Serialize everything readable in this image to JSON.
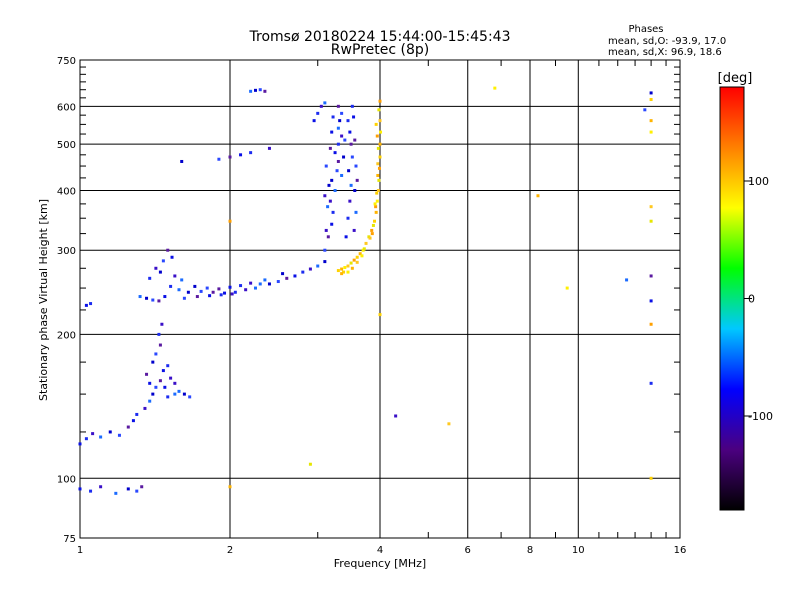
{
  "chart_data": {
    "type": "scatter",
    "title": "Tromsø 20180224 15:44:00-15:45:43",
    "subtitle": "RwPretec (8p)",
    "xlabel": "Frequency [MHz]",
    "ylabel": "Stationary phase Virtual Height [km]",
    "x_scale": "log",
    "y_scale": "log",
    "xlim": [
      1,
      16
    ],
    "ylim": [
      75,
      750
    ],
    "x_ticks": [
      1,
      2,
      4,
      6,
      8,
      10,
      16
    ],
    "x_gridlines": [
      2,
      4,
      6,
      8,
      10
    ],
    "x_minor_ticks": [
      3,
      5,
      7,
      9,
      11,
      12,
      13,
      14,
      15
    ],
    "y_ticks": [
      75,
      100,
      200,
      300,
      400,
      500,
      600,
      750
    ],
    "y_gridlines": [
      100,
      200,
      300,
      400,
      500,
      600
    ],
    "y_minor_ticks": [
      125,
      150,
      175,
      225,
      250,
      275,
      325,
      350,
      375,
      425,
      450,
      475,
      525,
      550,
      575,
      625,
      650,
      675,
      700,
      725
    ],
    "grid": true,
    "phase_legend": {
      "title": "Phases",
      "line_o": "mean, sd,O: -93.9, 17.0",
      "line_x": "mean, sd,X:  96.9, 18.6"
    },
    "colorbar": {
      "label": "[deg]",
      "range": [
        -180,
        180
      ],
      "ticks": [
        100,
        0,
        -100
      ],
      "stops": [
        "#000000",
        "#4b0080",
        "#0000ff",
        "#00c8ff",
        "#00ff00",
        "#ffff00",
        "#ff8000",
        "#ff0000"
      ]
    },
    "series": [
      {
        "name": "O",
        "points": [
          [
            1.0,
            95
          ],
          [
            1.05,
            94
          ],
          [
            1.1,
            96
          ],
          [
            1.18,
            93
          ],
          [
            1.25,
            95
          ],
          [
            1.3,
            94
          ],
          [
            1.33,
            96
          ],
          [
            1.0,
            118
          ],
          [
            1.03,
            121
          ],
          [
            1.06,
            124
          ],
          [
            1.1,
            122
          ],
          [
            1.15,
            125
          ],
          [
            1.2,
            123
          ],
          [
            1.25,
            128
          ],
          [
            1.28,
            132
          ],
          [
            1.3,
            136
          ],
          [
            1.35,
            140
          ],
          [
            1.38,
            145
          ],
          [
            1.4,
            150
          ],
          [
            1.42,
            155
          ],
          [
            1.45,
            160
          ],
          [
            1.48,
            155
          ],
          [
            1.5,
            148
          ],
          [
            1.52,
            162
          ],
          [
            1.55,
            150
          ],
          [
            1.4,
            175
          ],
          [
            1.42,
            182
          ],
          [
            1.45,
            190
          ],
          [
            1.47,
            168
          ],
          [
            1.5,
            172
          ],
          [
            1.55,
            158
          ],
          [
            1.58,
            152
          ],
          [
            1.62,
            150
          ],
          [
            1.66,
            148
          ],
          [
            1.36,
            165
          ],
          [
            1.38,
            158
          ],
          [
            1.44,
            200
          ],
          [
            1.46,
            210
          ],
          [
            1.32,
            240
          ],
          [
            1.36,
            238
          ],
          [
            1.4,
            236
          ],
          [
            1.44,
            235
          ],
          [
            1.48,
            240
          ],
          [
            1.52,
            252
          ],
          [
            1.55,
            265
          ],
          [
            1.6,
            260
          ],
          [
            1.45,
            270
          ],
          [
            1.47,
            285
          ],
          [
            1.5,
            300
          ],
          [
            1.53,
            290
          ],
          [
            1.38,
            262
          ],
          [
            1.42,
            275
          ],
          [
            1.58,
            248
          ],
          [
            1.65,
            245
          ],
          [
            1.75,
            246
          ],
          [
            1.85,
            245
          ],
          [
            1.95,
            244
          ],
          [
            2.05,
            245
          ],
          [
            2.15,
            248
          ],
          [
            2.25,
            250
          ],
          [
            1.7,
            252
          ],
          [
            1.8,
            250
          ],
          [
            1.9,
            249
          ],
          [
            2.0,
            251
          ],
          [
            2.1,
            253
          ],
          [
            2.2,
            256
          ],
          [
            2.3,
            255
          ],
          [
            2.4,
            255
          ],
          [
            2.5,
            258
          ],
          [
            2.6,
            262
          ],
          [
            2.7,
            265
          ],
          [
            2.8,
            270
          ],
          [
            2.9,
            274
          ],
          [
            3.0,
            278
          ],
          [
            3.1,
            284
          ],
          [
            1.62,
            238
          ],
          [
            1.72,
            240
          ],
          [
            1.82,
            241
          ],
          [
            1.92,
            242
          ],
          [
            2.02,
            243
          ],
          [
            2.35,
            260
          ],
          [
            2.55,
            268
          ],
          [
            3.1,
            300
          ],
          [
            3.15,
            320
          ],
          [
            3.2,
            340
          ],
          [
            3.22,
            360
          ],
          [
            3.18,
            380
          ],
          [
            3.25,
            400
          ],
          [
            3.2,
            420
          ],
          [
            3.28,
            440
          ],
          [
            3.3,
            460
          ],
          [
            3.25,
            480
          ],
          [
            3.3,
            500
          ],
          [
            3.35,
            520
          ],
          [
            3.3,
            540
          ],
          [
            3.32,
            560
          ],
          [
            3.35,
            580
          ],
          [
            3.3,
            600
          ],
          [
            3.42,
            320
          ],
          [
            3.45,
            350
          ],
          [
            3.48,
            380
          ],
          [
            3.5,
            410
          ],
          [
            3.46,
            440
          ],
          [
            3.52,
            470
          ],
          [
            3.5,
            500
          ],
          [
            3.48,
            530
          ],
          [
            3.45,
            560
          ],
          [
            3.55,
            330
          ],
          [
            3.58,
            360
          ],
          [
            3.56,
            400
          ],
          [
            3.58,
            450
          ],
          [
            3.56,
            510
          ],
          [
            3.54,
            570
          ],
          [
            3.52,
            600
          ],
          [
            3.12,
            330
          ],
          [
            3.14,
            370
          ],
          [
            3.16,
            410
          ],
          [
            3.12,
            450
          ],
          [
            3.18,
            490
          ],
          [
            3.2,
            530
          ],
          [
            3.22,
            570
          ],
          [
            3.1,
            390
          ],
          [
            3.35,
            430
          ],
          [
            3.38,
            470
          ],
          [
            3.4,
            510
          ],
          [
            3.6,
            420
          ],
          [
            2.95,
            560
          ],
          [
            3.0,
            580
          ],
          [
            3.05,
            600
          ],
          [
            3.1,
            610
          ],
          [
            1.6,
            460
          ],
          [
            1.9,
            465
          ],
          [
            2.0,
            470
          ],
          [
            2.1,
            475
          ],
          [
            2.2,
            480
          ],
          [
            2.4,
            490
          ],
          [
            2.2,
            645
          ],
          [
            2.25,
            648
          ],
          [
            2.3,
            650
          ],
          [
            2.35,
            645
          ],
          [
            1.03,
            230
          ],
          [
            1.05,
            232
          ],
          [
            4.3,
            135
          ],
          [
            12.5,
            260
          ],
          [
            14.0,
            640
          ],
          [
            13.6,
            590
          ],
          [
            14.0,
            265
          ],
          [
            14.0,
            235
          ],
          [
            14.0,
            158
          ]
        ]
      },
      {
        "name": "X",
        "points": [
          [
            3.3,
            272
          ],
          [
            3.35,
            274
          ],
          [
            3.4,
            276
          ],
          [
            3.45,
            278
          ],
          [
            3.5,
            282
          ],
          [
            3.55,
            286
          ],
          [
            3.6,
            290
          ],
          [
            3.65,
            295
          ],
          [
            3.7,
            300
          ],
          [
            3.75,
            310
          ],
          [
            3.8,
            320
          ],
          [
            3.85,
            330
          ],
          [
            3.9,
            345
          ],
          [
            3.93,
            360
          ],
          [
            3.95,
            380
          ],
          [
            3.97,
            400
          ],
          [
            3.98,
            420
          ],
          [
            3.99,
            445
          ],
          [
            4.0,
            470
          ],
          [
            4.0,
            500
          ],
          [
            4.01,
            530
          ],
          [
            4.0,
            560
          ],
          [
            3.98,
            590
          ],
          [
            4.0,
            615
          ],
          [
            3.38,
            270
          ],
          [
            3.52,
            275
          ],
          [
            3.68,
            292
          ],
          [
            3.82,
            318
          ],
          [
            3.88,
            338
          ],
          [
            3.92,
            370
          ],
          [
            3.94,
            395
          ],
          [
            3.96,
            430
          ],
          [
            3.91,
            375
          ],
          [
            3.96,
            455
          ],
          [
            3.97,
            490
          ],
          [
            3.95,
            520
          ],
          [
            3.93,
            550
          ],
          [
            3.35,
            268
          ],
          [
            3.45,
            270
          ],
          [
            3.6,
            283
          ],
          [
            3.72,
            302
          ],
          [
            3.86,
            325
          ],
          [
            14.0,
            620
          ],
          [
            14.0,
            560
          ],
          [
            14.0,
            530
          ],
          [
            14.0,
            370
          ],
          [
            14.0,
            345
          ],
          [
            14.0,
            210
          ],
          [
            14.0,
            100
          ],
          [
            8.3,
            390
          ],
          [
            9.5,
            250
          ],
          [
            5.5,
            130
          ],
          [
            2.9,
            107
          ],
          [
            2.0,
            345
          ],
          [
            4.0,
            220
          ],
          [
            2.0,
            96
          ],
          [
            6.8,
            655
          ]
        ]
      }
    ]
  }
}
